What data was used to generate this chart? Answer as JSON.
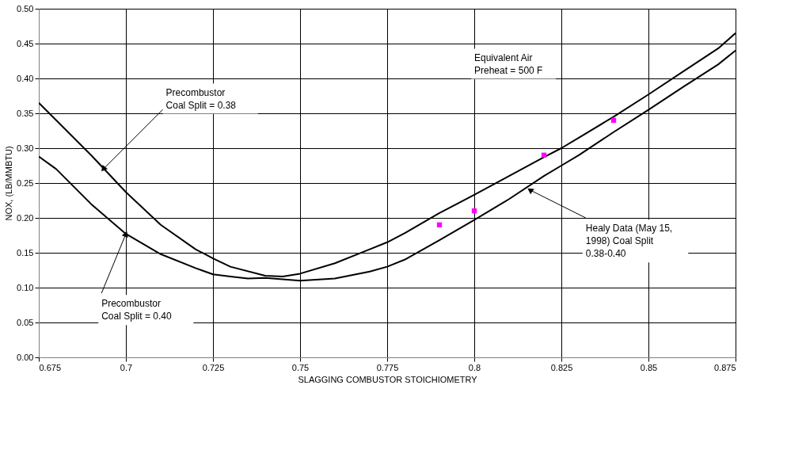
{
  "chart_data": {
    "type": "line",
    "xlabel": "SLAGGING COMBUSTOR STOICHIOMETRY",
    "ylabel": "NOX, (LB/MMBTU)",
    "xlim": [
      0.675,
      0.875
    ],
    "xticks": [
      0.675,
      0.7,
      0.725,
      0.75,
      0.775,
      0.8,
      0.825,
      0.85,
      0.875
    ],
    "ylim": [
      0,
      0.5
    ],
    "yticks": [
      {
        "value": 0,
        "label": "0.00"
      },
      {
        "value": 0.05,
        "label": "0.05"
      },
      {
        "value": 0.1,
        "label": "0.10"
      },
      {
        "value": 0.15,
        "label": "0.15"
      },
      {
        "value": 0.2,
        "label": "0.20"
      },
      {
        "value": 0.25,
        "label": "0.25"
      },
      {
        "value": 0.3,
        "label": "0.30"
      },
      {
        "value": 0.35,
        "label": "0.35"
      },
      {
        "value": 0.4,
        "label": "0.40"
      },
      {
        "value": 0.45,
        "label": "0.45"
      },
      {
        "value": 0.5,
        "label": "0.50"
      }
    ],
    "grid": true,
    "line_style": "solid",
    "series": [
      {
        "color": "#000000",
        "x": [
          0.675,
          0.68,
          0.69,
          0.7,
          0.71,
          0.72,
          0.725,
          0.73,
          0.74,
          0.745,
          0.75,
          0.76,
          0.77,
          0.775,
          0.78,
          0.79,
          0.8,
          0.81,
          0.82,
          0.825,
          0.83,
          0.84,
          0.85,
          0.86,
          0.87,
          0.875
        ],
        "values": [
          0.365,
          0.34,
          0.29,
          0.237,
          0.19,
          0.155,
          0.142,
          0.13,
          0.117,
          0.116,
          0.12,
          0.135,
          0.155,
          0.165,
          0.178,
          0.207,
          0.233,
          0.26,
          0.287,
          0.3,
          0.315,
          0.345,
          0.377,
          0.41,
          0.443,
          0.465
        ]
      },
      {
        "color": "#000000",
        "x": [
          0.675,
          0.68,
          0.69,
          0.7,
          0.71,
          0.72,
          0.725,
          0.73,
          0.735,
          0.74,
          0.745,
          0.75,
          0.76,
          0.77,
          0.775,
          0.78,
          0.79,
          0.8,
          0.81,
          0.82,
          0.825,
          0.83,
          0.84,
          0.85,
          0.86,
          0.87,
          0.875
        ],
        "values": [
          0.288,
          0.27,
          0.22,
          0.177,
          0.148,
          0.128,
          0.119,
          0.116,
          0.113,
          0.114,
          0.112,
          0.11,
          0.113,
          0.123,
          0.13,
          0.14,
          0.168,
          0.197,
          0.227,
          0.26,
          0.275,
          0.29,
          0.323,
          0.355,
          0.388,
          0.42,
          0.44
        ]
      },
      {
        "type": "scatter",
        "color": "#ff00ff",
        "marker": "square",
        "x": [
          0.79,
          0.8,
          0.82,
          0.84
        ],
        "values": [
          0.19,
          0.21,
          0.29,
          0.34
        ]
      }
    ],
    "annotations": [
      {
        "text": "Precombustor\nCoal Split = 0.38",
        "x": 0.6935,
        "y": 0.27
      },
      {
        "text": "Precombustor\nCoal Split = 0.40",
        "x": 0.7,
        "y": 0.177
      },
      "Equivalent Air\nPreheat = 500 F",
      {
        "text": "Healy Data (May 15,\n1998) Coal Split\n0.38-0.40",
        "x": 0.816,
        "y": 0.24
      }
    ]
  }
}
